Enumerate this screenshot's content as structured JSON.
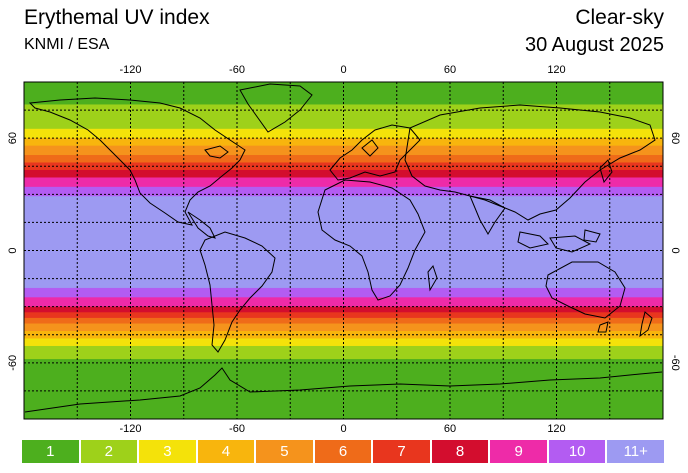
{
  "header": {
    "title": "Erythemal UV index",
    "source": "KNMI / ESA",
    "scenario": "Clear-sky",
    "date": "30 August 2025"
  },
  "map": {
    "lon_ticks": [
      -120,
      -60,
      0,
      60,
      120
    ],
    "lat_ticks": [
      60,
      0,
      -60
    ],
    "lon_range": [
      -180,
      180
    ],
    "lat_range": [
      -90,
      90
    ],
    "grid": true,
    "uv_bands": [
      {
        "lat": [
          78,
          90
        ],
        "level": 1
      },
      {
        "lat": [
          65,
          78
        ],
        "level": 2
      },
      {
        "lat": [
          60,
          65
        ],
        "level": 3
      },
      {
        "lat": [
          56,
          60
        ],
        "level": 4
      },
      {
        "lat": [
          51,
          56
        ],
        "level": 5
      },
      {
        "lat": [
          47,
          51
        ],
        "level": 6
      },
      {
        "lat": [
          43,
          47
        ],
        "level": 7
      },
      {
        "lat": [
          39,
          43
        ],
        "level": 8
      },
      {
        "lat": [
          34,
          39
        ],
        "level": 9
      },
      {
        "lat": [
          29,
          34
        ],
        "level": 10
      },
      {
        "lat": [
          -20,
          29
        ],
        "level": 11
      },
      {
        "lat": [
          -25,
          -20
        ],
        "level": 10
      },
      {
        "lat": [
          -30,
          -25
        ],
        "level": 9
      },
      {
        "lat": [
          -33,
          -30
        ],
        "level": 8
      },
      {
        "lat": [
          -36,
          -33
        ],
        "level": 7
      },
      {
        "lat": [
          -39,
          -36
        ],
        "level": 6
      },
      {
        "lat": [
          -43,
          -39
        ],
        "level": 5
      },
      {
        "lat": [
          -47,
          -43
        ],
        "level": 4
      },
      {
        "lat": [
          -51,
          -47
        ],
        "level": 3
      },
      {
        "lat": [
          -58,
          -51
        ],
        "level": 2
      },
      {
        "lat": [
          -90,
          -58
        ],
        "level": 1
      }
    ]
  },
  "legend": [
    {
      "label": "1",
      "color": "#4daf1e"
    },
    {
      "label": "2",
      "color": "#9ed11a"
    },
    {
      "label": "3",
      "color": "#f4e20a"
    },
    {
      "label": "4",
      "color": "#f8b50d"
    },
    {
      "label": "5",
      "color": "#f5931c"
    },
    {
      "label": "6",
      "color": "#ef6b19"
    },
    {
      "label": "7",
      "color": "#e8361e"
    },
    {
      "label": "8",
      "color": "#d30d2e"
    },
    {
      "label": "9",
      "color": "#ee2ba8"
    },
    {
      "label": "10",
      "color": "#b35cf2"
    },
    {
      "label": "11+",
      "color": "#9d9af2"
    }
  ]
}
